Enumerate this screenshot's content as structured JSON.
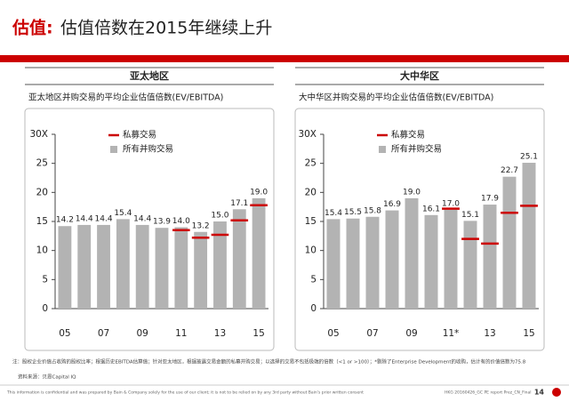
{
  "header": {
    "title_label": "估值:",
    "title": "估值倍数在2015年继续上升"
  },
  "chart_data": [
    {
      "type": "bar",
      "panel_title": "亚太地区",
      "subtitle": "亚太地区并购交易的平均企业估值倍数(EV/EBITDA)",
      "categories": [
        "05",
        null,
        "07",
        null,
        "09",
        null,
        "11",
        null,
        "13",
        null,
        "15"
      ],
      "series": [
        {
          "name": "所有并购交易",
          "type": "bar",
          "color": "#b3b3b3",
          "values": [
            14.2,
            14.4,
            14.4,
            15.4,
            14.4,
            13.9,
            14.0,
            13.2,
            15.0,
            17.1,
            19.0
          ],
          "value_labels": [
            "14.2",
            "14.4",
            "14.4",
            "15.4",
            "14.4",
            "13.9",
            "14.0",
            "13.2",
            "15.0",
            "17.1",
            "19.0"
          ]
        },
        {
          "name": "私募交易",
          "type": "marker",
          "color": "#cc0000",
          "values": [
            null,
            null,
            null,
            null,
            null,
            null,
            13.5,
            12.2,
            12.7,
            15.2,
            17.8
          ]
        }
      ],
      "ylim": [
        0,
        30
      ],
      "yticks": [
        0,
        5,
        10,
        15,
        20,
        25,
        {
          "value": 30,
          "label": "30X"
        }
      ]
    },
    {
      "type": "bar",
      "panel_title": "大中华区",
      "subtitle": "大中华区并购交易的平均企业估值倍数(EV/EBITDA)",
      "categories": [
        "05",
        null,
        "07",
        null,
        "09",
        null,
        "11*",
        null,
        "13",
        null,
        "15"
      ],
      "series": [
        {
          "name": "所有并购交易",
          "type": "bar",
          "color": "#b3b3b3",
          "values": [
            15.4,
            15.5,
            15.8,
            16.9,
            19.0,
            16.1,
            17.0,
            15.1,
            17.9,
            22.7,
            25.1
          ],
          "value_labels": [
            "15.4",
            "15.5",
            "15.8",
            "16.9",
            "19.0",
            "16.1",
            "17.0",
            "15.1",
            "17.9",
            "22.7",
            "25.1"
          ]
        },
        {
          "name": "私募交易",
          "type": "marker",
          "color": "#cc0000",
          "values": [
            null,
            null,
            null,
            null,
            null,
            null,
            17.2,
            12.0,
            11.2,
            16.5,
            17.7
          ]
        }
      ],
      "ylim": [
        0,
        30
      ],
      "yticks": [
        0,
        5,
        10,
        15,
        20,
        25,
        {
          "value": 30,
          "label": "30X"
        }
      ]
    }
  ],
  "notes": {
    "note": "注：股权企业价值占收购的股权比率；根据历史EBITDA估算值；针对亚太地区，根据披露交易金额的私募并购交易；以选择的交易不包括极端的倍数（<1 or >100）；*剔除了Enterprise Development的收购，估计有的价值倍数为75.8",
    "source": "资料来源：贝恩Capital IQ"
  },
  "footer": {
    "disclaimer": "This information is confidential and was prepared by Bain & Company solely for the use of our client; it is not to be relied on by any 3rd party without Bain's prior written consent",
    "code": "HKG 20160426_GC PE report Prez_CN_Final",
    "page": "14"
  }
}
